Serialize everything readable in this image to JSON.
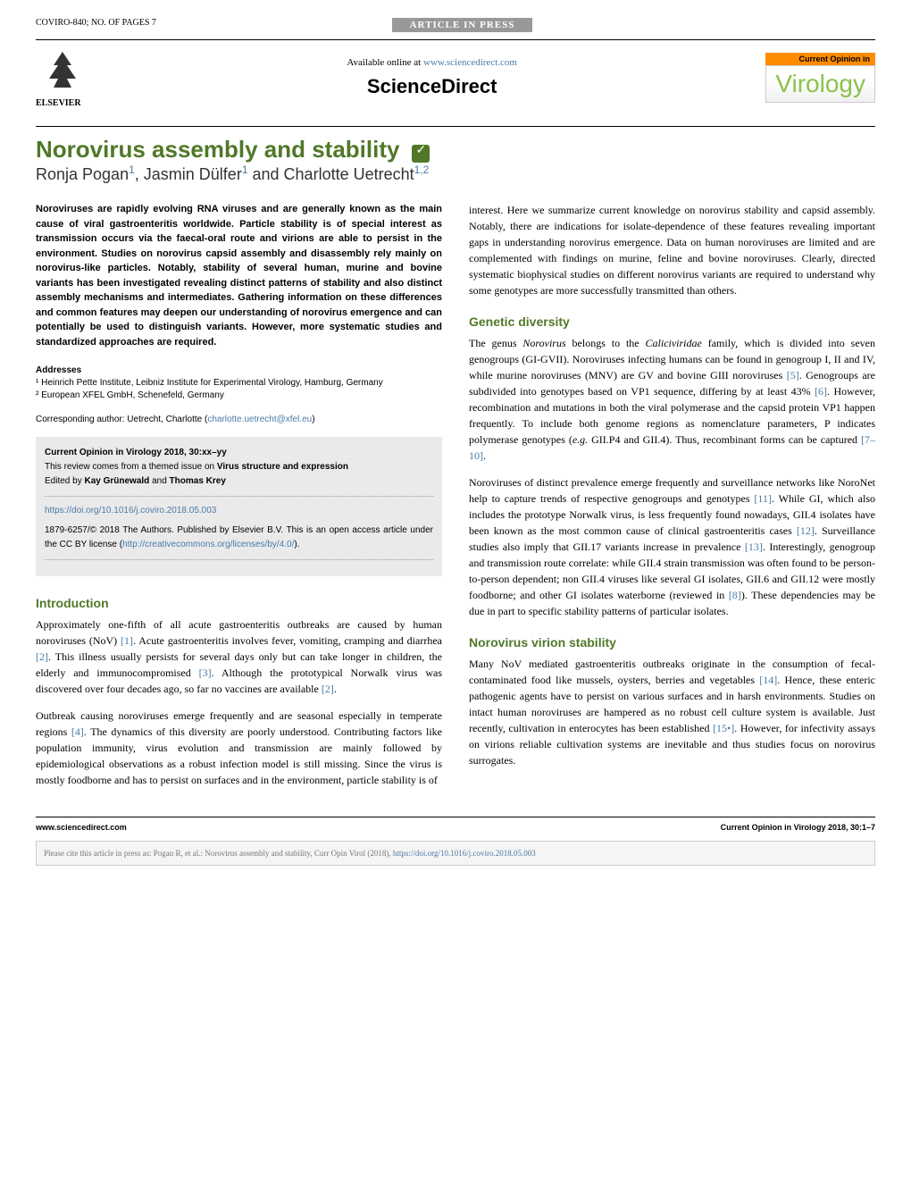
{
  "header": {
    "doc_id": "COVIRO-840; NO. OF PAGES 7",
    "article_in_press": "ARTICLE IN PRESS",
    "available_online_prefix": "Available online at ",
    "available_online_url": "www.sciencedirect.com",
    "sciencedirect": "ScienceDirect",
    "elsevier": "ELSEVIER",
    "virology_top": "Current Opinion in",
    "virology_main": "Virology"
  },
  "title": "Norovirus assembly and stability",
  "authors_html": "Ronja Pogan<sup>1</sup>, Jasmin Dülfer<sup>1</sup> and Charlotte Uetrecht<sup>1,2</sup>",
  "abstract": "Noroviruses are rapidly evolving RNA viruses and are generally known as the main cause of viral gastroenteritis worldwide. Particle stability is of special interest as transmission occurs via the faecal-oral route and virions are able to persist in the environment. Studies on norovirus capsid assembly and disassembly rely mainly on norovirus-like particles. Notably, stability of several human, murine and bovine variants has been investigated revealing distinct patterns of stability and also distinct assembly mechanisms and intermediates. Gathering information on these differences and common features may deepen our understanding of norovirus emergence and can potentially be used to distinguish variants. However, more systematic studies and standardized approaches are required.",
  "addresses": {
    "label": "Addresses",
    "line1": "¹ Heinrich Pette Institute, Leibniz Institute for Experimental Virology, Hamburg, Germany",
    "line2": "² European XFEL GmbH, Schenefeld, Germany"
  },
  "corresponding": {
    "prefix": "Corresponding author: Uetrecht, Charlotte (",
    "email": "charlotte.uetrecht@xfel.eu",
    "suffix": ")"
  },
  "infobox": {
    "citation": "Current Opinion in Virology 2018, 30:xx–yy",
    "themed_prefix": "This review comes from a themed issue on ",
    "themed_bold": "Virus structure and expression",
    "edited_prefix": "Edited by ",
    "editors": "Kay Grünewald",
    "editors_and": " and ",
    "editors2": "Thomas Krey",
    "doi": "https://doi.org/10.1016/j.coviro.2018.05.003",
    "copyright_prefix": "1879-6257/© 2018 The Authors. Published by Elsevier B.V. This is an open access article under the CC BY license (",
    "cc_url": "http://creativecommons.org/licenses/by/4.0/",
    "copyright_suffix": ")."
  },
  "sections": {
    "intro_heading": "Introduction",
    "intro_p1": "Approximately one-fifth of all acute gastroenteritis outbreaks are caused by human noroviruses (NoV) [1]. Acute gastroenteritis involves fever, vomiting, cramping and diarrhea [2]. This illness usually persists for several days only but can take longer in children, the elderly and immunocompromised [3]. Although the prototypical Norwalk virus was discovered over four decades ago, so far no vaccines are available [2].",
    "intro_p2": "Outbreak causing noroviruses emerge frequently and are seasonal especially in temperate regions [4]. The dynamics of this diversity are poorly understood. Contributing factors like population immunity, virus evolution and transmission are mainly followed by epidemiological observations as a robust infection model is still missing. Since the virus is mostly foodborne and has to persist on surfaces and in the environment, particle stability is of",
    "col2_p1": "interest. Here we summarize current knowledge on norovirus stability and capsid assembly. Notably, there are indications for isolate-dependence of these features revealing important gaps in understanding norovirus emergence. Data on human noroviruses are limited and are complemented with findings on murine, feline and bovine noroviruses. Clearly, directed systematic biophysical studies on different norovirus variants are required to understand why some genotypes are more successfully transmitted than others.",
    "genetic_heading": "Genetic diversity",
    "genetic_p1_pre": "The genus ",
    "genetic_p1_italic1": "Norovirus",
    "genetic_p1_mid": " belongs to the ",
    "genetic_p1_italic2": "Caliciviridae",
    "genetic_p1_post": " family, which is divided into seven genogroups (GI-GVII). Noroviruses infecting humans can be found in genogroup I, II and IV, while murine noroviruses (MNV) are GV and bovine GIII noroviruses [5]. Genogroups are subdivided into genotypes based on VP1 sequence, differing by at least 43% [6]. However, recombination and mutations in both the viral polymerase and the capsid protein VP1 happen frequently. To include both genome regions as nomenclature parameters, P indicates polymerase genotypes (",
    "genetic_p1_eg": "e.g.",
    "genetic_p1_end": " GII.P4 and GII.4). Thus, recombinant forms can be captured [7–10].",
    "genetic_p2": "Noroviruses of distinct prevalence emerge frequently and surveillance networks like NoroNet help to capture trends of respective genogroups and genotypes [11]. While GI, which also includes the prototype Norwalk virus, is less frequently found nowadays, GII.4 isolates have been known as the most common cause of clinical gastroenteritis cases [12]. Surveillance studies also imply that GII.17 variants increase in prevalence [13]. Interestingly, genogroup and transmission route correlate: while GII.4 strain transmission was often found to be person-to-person dependent; non GII.4 viruses like several GI isolates, GII.6 and GII.12 were mostly foodborne; and other GI isolates waterborne (reviewed in [8]). These dependencies may be due in part to specific stability patterns of particular isolates.",
    "stability_heading": "Norovirus virion stability",
    "stability_p1": "Many NoV mediated gastroenteritis outbreaks originate in the consumption of fecal-contaminated food like mussels, oysters, berries and vegetables [14]. Hence, these enteric pathogenic agents have to persist on various surfaces and in harsh environments. Studies on intact human noroviruses are hampered as no robust cell culture system is available. Just recently, cultivation in enterocytes has been established [15•]. However, for infectivity assays on virions reliable cultivation systems are inevitable and thus studies focus on norovirus surrogates."
  },
  "footer": {
    "left": "www.sciencedirect.com",
    "right": "Current Opinion in Virology 2018, 30:1–7"
  },
  "citation_box": {
    "prefix": "Please cite this article in press as: Pogan R, et al.: Norovirus assembly and stability, Curr Opin Virol (2018), ",
    "url": "https://doi.org/10.1016/j.coviro.2018.05.003"
  },
  "colors": {
    "green": "#507828",
    "link": "#4a7ba6",
    "orange": "#ff8c00",
    "lightgreen": "#8bc34a"
  }
}
